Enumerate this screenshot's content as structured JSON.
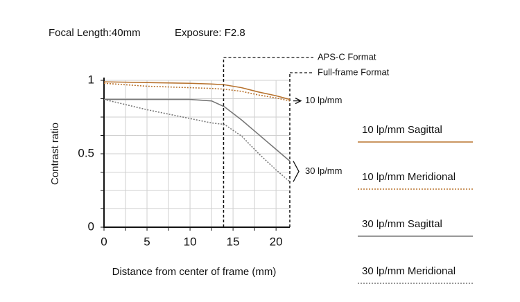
{
  "chart_data": {
    "type": "line",
    "header": [
      "Focal Length:40mm",
      "Exposure: F2.8"
    ],
    "xlabel": "Distance from center of frame (mm)",
    "ylabel": "Contrast ratio",
    "x": [
      0,
      5,
      10,
      12.5,
      14,
      16,
      18,
      20,
      21.6
    ],
    "series": [
      {
        "name": "10 lp/mm Sagittal",
        "color": "#b8732f",
        "style": "solid",
        "values": [
          0.99,
          0.985,
          0.98,
          0.975,
          0.97,
          0.95,
          0.92,
          0.895,
          0.87
        ]
      },
      {
        "name": "10 lp/mm Meridional",
        "color": "#b8732f",
        "style": "dotted",
        "values": [
          0.98,
          0.96,
          0.95,
          0.945,
          0.94,
          0.925,
          0.9,
          0.88,
          0.86
        ]
      },
      {
        "name": "30 lp/mm Sagittal",
        "color": "#777777",
        "style": "solid",
        "values": [
          0.87,
          0.87,
          0.87,
          0.86,
          0.82,
          0.73,
          0.63,
          0.53,
          0.45
        ]
      },
      {
        "name": "30 lp/mm Meridional",
        "color": "#777777",
        "style": "dotted",
        "values": [
          0.87,
          0.8,
          0.74,
          0.71,
          0.7,
          0.62,
          0.5,
          0.39,
          0.31
        ]
      }
    ],
    "xlim": [
      0,
      21.6
    ],
    "ylim": [
      0,
      1
    ],
    "xticks": [
      0,
      5,
      10,
      15,
      20
    ],
    "yticks": [
      0,
      0.5,
      1
    ],
    "minor_xticks": [
      2.5,
      7.5,
      12.5,
      17.5
    ],
    "minor_yticks": [
      0.125,
      0.25,
      0.375,
      0.625,
      0.75,
      0.875
    ],
    "grid": true,
    "format_lines": [
      {
        "x": 13.9,
        "label": "APS-C Format"
      },
      {
        "x": 21.6,
        "label": "Full-frame Format"
      }
    ],
    "group_labels": [
      "10 lp/mm",
      "30 lp/mm"
    ]
  }
}
